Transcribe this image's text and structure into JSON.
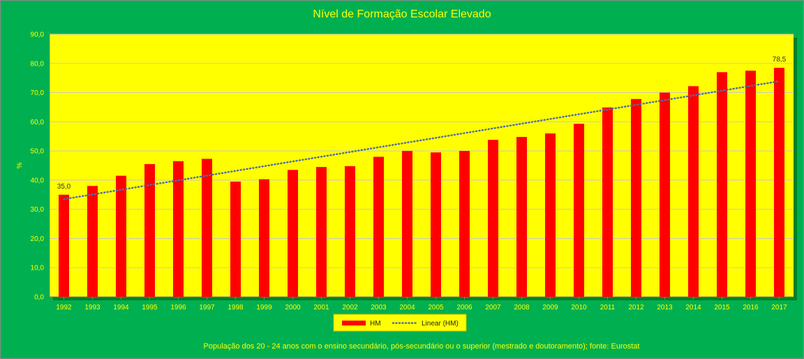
{
  "chart_data": {
    "type": "bar",
    "title": "Nível de Formação Escolar Elevado",
    "ylabel": "%",
    "xlabel": "",
    "ylim": [
      0,
      90
    ],
    "yticks": [
      "0,0",
      "10,0",
      "20,0",
      "30,0",
      "40,0",
      "50,0",
      "60,0",
      "70,0",
      "80,0",
      "90,0"
    ],
    "grid": true,
    "legend_position": "bottom",
    "categories": [
      "1992",
      "1993",
      "1994",
      "1995",
      "1996",
      "1997",
      "1998",
      "1999",
      "2000",
      "2001",
      "2002",
      "2003",
      "2004",
      "2005",
      "2006",
      "2007",
      "2008",
      "2009",
      "2010",
      "2011",
      "2012",
      "2013",
      "2014",
      "2015",
      "2016",
      "2017"
    ],
    "series": [
      {
        "name": "HM",
        "color": "#ff0000",
        "values": [
          35.0,
          38.0,
          41.5,
          45.5,
          46.5,
          47.3,
          39.5,
          40.3,
          43.5,
          44.5,
          44.8,
          48.0,
          50.0,
          49.5,
          50.0,
          53.8,
          54.8,
          56.0,
          59.3,
          64.9,
          67.8,
          70.0,
          72.2,
          77.0,
          77.5,
          78.5
        ]
      }
    ],
    "trendline": {
      "name": "Linear (HM)",
      "type": "linear",
      "color": "#4f6fa5",
      "style": "dotted"
    },
    "data_labels": [
      {
        "category": "1992",
        "text": "35,0"
      },
      {
        "category": "2017",
        "text": "78,5"
      }
    ],
    "footnote": "População dos 20 - 24 anos com o ensino secundário, pós-secundário ou o superior (mestrado e  doutoramento);  fonte:  Eurostat"
  }
}
